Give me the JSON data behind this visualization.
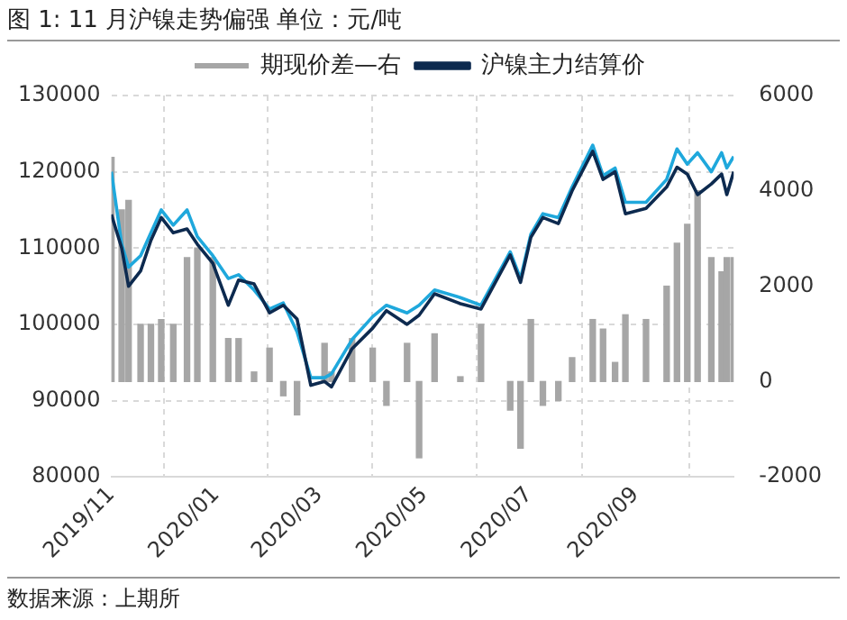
{
  "chart_data": {
    "type": "line",
    "title": "图 1:  11 月沪镍走势偏强   单位：元/吨",
    "annotations": [
      "数据来源：上期所"
    ],
    "x": [
      "2019-11-01",
      "2019-11-07",
      "2019-11-11",
      "2019-11-18",
      "2019-11-24",
      "2019-11-30",
      "2019-12-07",
      "2019-12-15",
      "2019-12-21",
      "2019-12-30",
      "2020-01-08",
      "2020-01-14",
      "2020-01-23",
      "2020-02-01",
      "2020-02-09",
      "2020-02-17",
      "2020-02-25",
      "2020-03-04",
      "2020-03-08",
      "2020-03-20",
      "2020-04-01",
      "2020-04-09",
      "2020-04-21",
      "2020-04-28",
      "2020-05-07",
      "2020-05-22",
      "2020-06-03",
      "2020-06-20",
      "2020-06-26",
      "2020-07-02",
      "2020-07-09",
      "2020-07-18",
      "2020-07-26",
      "2020-08-07",
      "2020-08-13",
      "2020-08-20",
      "2020-08-26",
      "2020-09-07",
      "2020-09-19",
      "2020-09-25",
      "2020-10-01",
      "2020-10-07",
      "2020-10-15",
      "2020-10-21",
      "2020-10-24",
      "2020-10-28"
    ],
    "series": [
      {
        "name": "期现价差—右",
        "type": "bar",
        "axis": "y2",
        "color": "#a6a6a6",
        "values": [
          4700,
          3600,
          3800,
          1200,
          1200,
          1300,
          1200,
          2600,
          2800,
          2600,
          900,
          900,
          200,
          700,
          -300,
          -700,
          null,
          800,
          200,
          900,
          700,
          -500,
          800,
          -1600,
          1000,
          100,
          1200,
          -600,
          -1400,
          1300,
          -500,
          -400,
          500,
          1300,
          1100,
          400,
          1400,
          1300,
          2000,
          2900,
          3300,
          4000,
          2600,
          2300,
          2600,
          2600
        ]
      },
      {
        "name": "沪镍主力结算价",
        "color": "#0d2a4f",
        "values": [
          114400,
          110000,
          105000,
          107000,
          111000,
          114000,
          112000,
          112500,
          110500,
          108000,
          102500,
          105800,
          105300,
          101500,
          102500,
          100700,
          92000,
          92500,
          91800,
          96800,
          99500,
          101800,
          100000,
          101200,
          104000,
          102700,
          102000,
          109100,
          105500,
          111400,
          114000,
          113200,
          117500,
          122700,
          119000,
          120000,
          114500,
          115200,
          118000,
          120600,
          119700,
          117000,
          118400,
          119700,
          117000,
          120000
        ]
      },
      {
        "color": "#1fa8dc",
        "values": [
          120000,
          110500,
          107500,
          109000,
          112000,
          115000,
          113000,
          115000,
          111500,
          109000,
          106000,
          106500,
          104500,
          102000,
          102800,
          99000,
          93000,
          93000,
          93500,
          98000,
          101000,
          102500,
          101500,
          102500,
          104500,
          103500,
          102500,
          109500,
          106000,
          111800,
          114500,
          114000,
          118000,
          123500,
          119500,
          120500,
          116000,
          116000,
          119000,
          123000,
          121000,
          122500,
          120000,
          122500,
          120500,
          122000
        ]
      }
    ],
    "xlim": [
      "2019-11-01",
      "2020-10-28"
    ],
    "xticks": [
      {
        "value": "2019-11-01",
        "label": "2019/11"
      },
      {
        "value": "2020-01-01",
        "label": "2020/01"
      },
      {
        "value": "2020-03-01",
        "label": "2020/03"
      },
      {
        "value": "2020-05-01",
        "label": "2020/05"
      },
      {
        "value": "2020-07-01",
        "label": "2020/07"
      },
      {
        "value": "2020-09-01",
        "label": "2020/09"
      }
    ],
    "ylim": [
      80000,
      130000
    ],
    "yticks": [
      80000,
      90000,
      100000,
      110000,
      120000,
      130000
    ],
    "y2lim": [
      -2000,
      6000
    ],
    "y2ticks": [
      -2000,
      0,
      2000,
      4000,
      6000
    ],
    "grid": true,
    "legend": "top",
    "marker": "none",
    "line_style": "solid"
  }
}
